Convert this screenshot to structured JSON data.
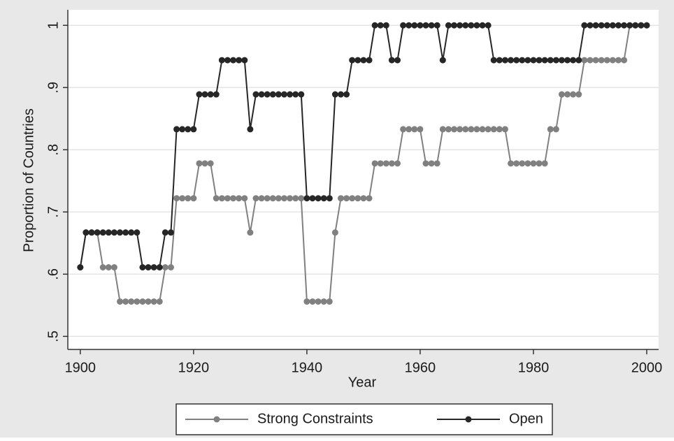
{
  "chart_data": {
    "type": "line",
    "xlabel": "Year",
    "ylabel": "Proportion of Countries",
    "x": [
      1900,
      1901,
      1902,
      1903,
      1904,
      1905,
      1906,
      1907,
      1908,
      1909,
      1910,
      1911,
      1912,
      1913,
      1914,
      1915,
      1916,
      1917,
      1918,
      1919,
      1920,
      1921,
      1922,
      1923,
      1924,
      1925,
      1926,
      1927,
      1928,
      1929,
      1930,
      1931,
      1932,
      1933,
      1934,
      1935,
      1936,
      1937,
      1938,
      1939,
      1940,
      1941,
      1942,
      1943,
      1944,
      1945,
      1946,
      1947,
      1948,
      1949,
      1950,
      1951,
      1952,
      1953,
      1954,
      1955,
      1956,
      1957,
      1958,
      1959,
      1960,
      1961,
      1962,
      1963,
      1964,
      1965,
      1966,
      1967,
      1968,
      1969,
      1970,
      1971,
      1972,
      1973,
      1974,
      1975,
      1976,
      1977,
      1978,
      1979,
      1980,
      1981,
      1982,
      1983,
      1984,
      1985,
      1986,
      1987,
      1988,
      1989,
      1990,
      1991,
      1992,
      1993,
      1994,
      1995,
      1996,
      1997,
      1998,
      1999,
      2000
    ],
    "series": [
      {
        "name": "Strong Constraints",
        "color": "#808080",
        "values": [
          0.611,
          0.667,
          0.667,
          0.667,
          0.611,
          0.611,
          0.611,
          0.556,
          0.556,
          0.556,
          0.556,
          0.556,
          0.556,
          0.556,
          0.556,
          0.611,
          0.611,
          0.722,
          0.722,
          0.722,
          0.722,
          0.778,
          0.778,
          0.778,
          0.722,
          0.722,
          0.722,
          0.722,
          0.722,
          0.722,
          0.667,
          0.722,
          0.722,
          0.722,
          0.722,
          0.722,
          0.722,
          0.722,
          0.722,
          0.722,
          0.556,
          0.556,
          0.556,
          0.556,
          0.556,
          0.667,
          0.722,
          0.722,
          0.722,
          0.722,
          0.722,
          0.722,
          0.778,
          0.778,
          0.778,
          0.778,
          0.778,
          0.833,
          0.833,
          0.833,
          0.833,
          0.778,
          0.778,
          0.778,
          0.833,
          0.833,
          0.833,
          0.833,
          0.833,
          0.833,
          0.833,
          0.833,
          0.833,
          0.833,
          0.833,
          0.833,
          0.778,
          0.778,
          0.778,
          0.778,
          0.778,
          0.778,
          0.778,
          0.833,
          0.833,
          0.889,
          0.889,
          0.889,
          0.889,
          0.944,
          0.944,
          0.944,
          0.944,
          0.944,
          0.944,
          0.944,
          0.944,
          1,
          1,
          1,
          1
        ]
      },
      {
        "name": "Open",
        "color": "#262626",
        "values": [
          0.611,
          0.667,
          0.667,
          0.667,
          0.667,
          0.667,
          0.667,
          0.667,
          0.667,
          0.667,
          0.667,
          0.611,
          0.611,
          0.611,
          0.611,
          0.667,
          0.667,
          0.833,
          0.833,
          0.833,
          0.833,
          0.889,
          0.889,
          0.889,
          0.889,
          0.944,
          0.944,
          0.944,
          0.944,
          0.944,
          0.833,
          0.889,
          0.889,
          0.889,
          0.889,
          0.889,
          0.889,
          0.889,
          0.889,
          0.889,
          0.722,
          0.722,
          0.722,
          0.722,
          0.722,
          0.889,
          0.889,
          0.889,
          0.944,
          0.944,
          0.944,
          0.944,
          1,
          1,
          1,
          0.944,
          0.944,
          1,
          1,
          1,
          1,
          1,
          1,
          1,
          0.944,
          1,
          1,
          1,
          1,
          1,
          1,
          1,
          1,
          0.944,
          0.944,
          0.944,
          0.944,
          0.944,
          0.944,
          0.944,
          0.944,
          0.944,
          0.944,
          0.944,
          0.944,
          0.944,
          0.944,
          0.944,
          0.944,
          1,
          1,
          1,
          1,
          1,
          1,
          1,
          1,
          1,
          1,
          1,
          1
        ]
      }
    ],
    "xlim": [
      1897.8,
      2002.1
    ],
    "xticks": [
      1900,
      1920,
      1940,
      1960,
      1980,
      2000
    ],
    "ylim": [
      0.479,
      1.025
    ],
    "yticks": [
      {
        "value": 0.5,
        "label": ".5"
      },
      {
        "value": 0.6,
        "label": ".6"
      },
      {
        "value": 0.7,
        "label": ".7"
      },
      {
        "value": 0.8,
        "label": ".8"
      },
      {
        "value": 0.9,
        "label": ".9"
      },
      1
    ],
    "grid": true,
    "legend": "bottom"
  }
}
